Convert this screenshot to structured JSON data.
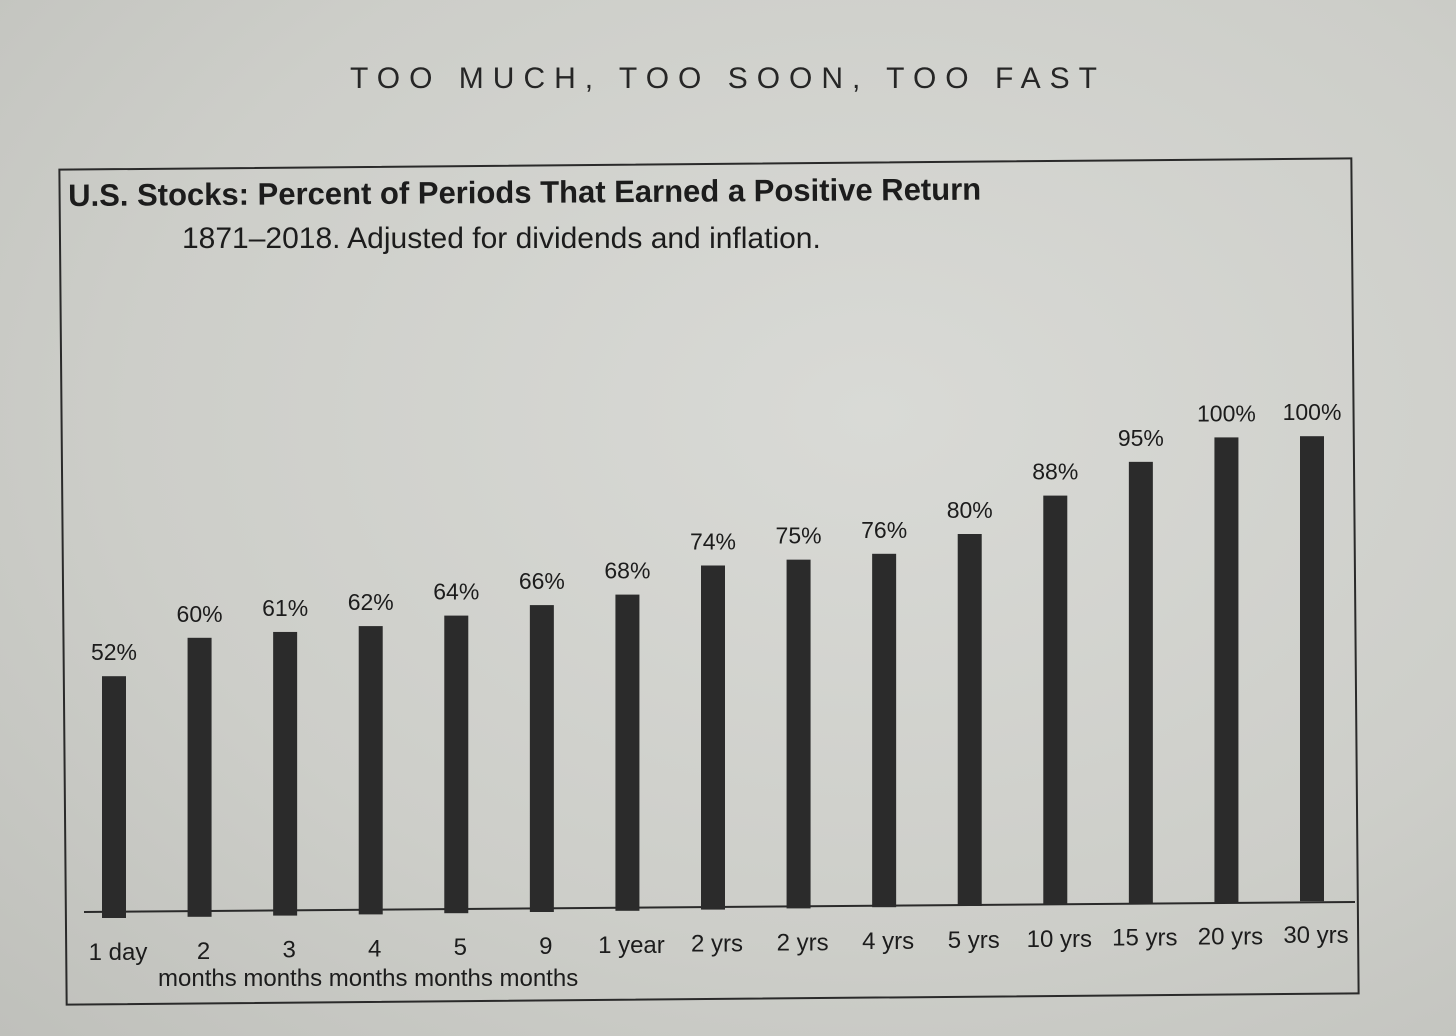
{
  "page": {
    "running_head": "TOO MUCH, TOO SOON, TOO FAST"
  },
  "chart_data": {
    "type": "bar",
    "title": "U.S. Stocks: Percent of Periods That Earned a Positive Return",
    "subtitle": "1871–2018. Adjusted for dividends and inflation.",
    "categories": [
      "1 day",
      "2",
      "3",
      "4",
      "5",
      "9",
      "1 year",
      "2 yrs",
      "2 yrs",
      "4 yrs",
      "5 yrs",
      "10 yrs",
      "15 yrs",
      "20 yrs",
      "30 yrs"
    ],
    "values": [
      52,
      60,
      61,
      62,
      64,
      66,
      68,
      74,
      75,
      76,
      80,
      88,
      95,
      100,
      100
    ],
    "value_labels": [
      "52%",
      "60%",
      "61%",
      "62%",
      "64%",
      "66%",
      "68%",
      "74%",
      "75%",
      "76%",
      "80%",
      "88%",
      "95%",
      "100%",
      "100%"
    ],
    "month_group_label": "months months months months months",
    "xlabel": "",
    "ylabel": "",
    "ylim": [
      0,
      100
    ],
    "grid": false,
    "bar_color": "#2b2b2b"
  }
}
